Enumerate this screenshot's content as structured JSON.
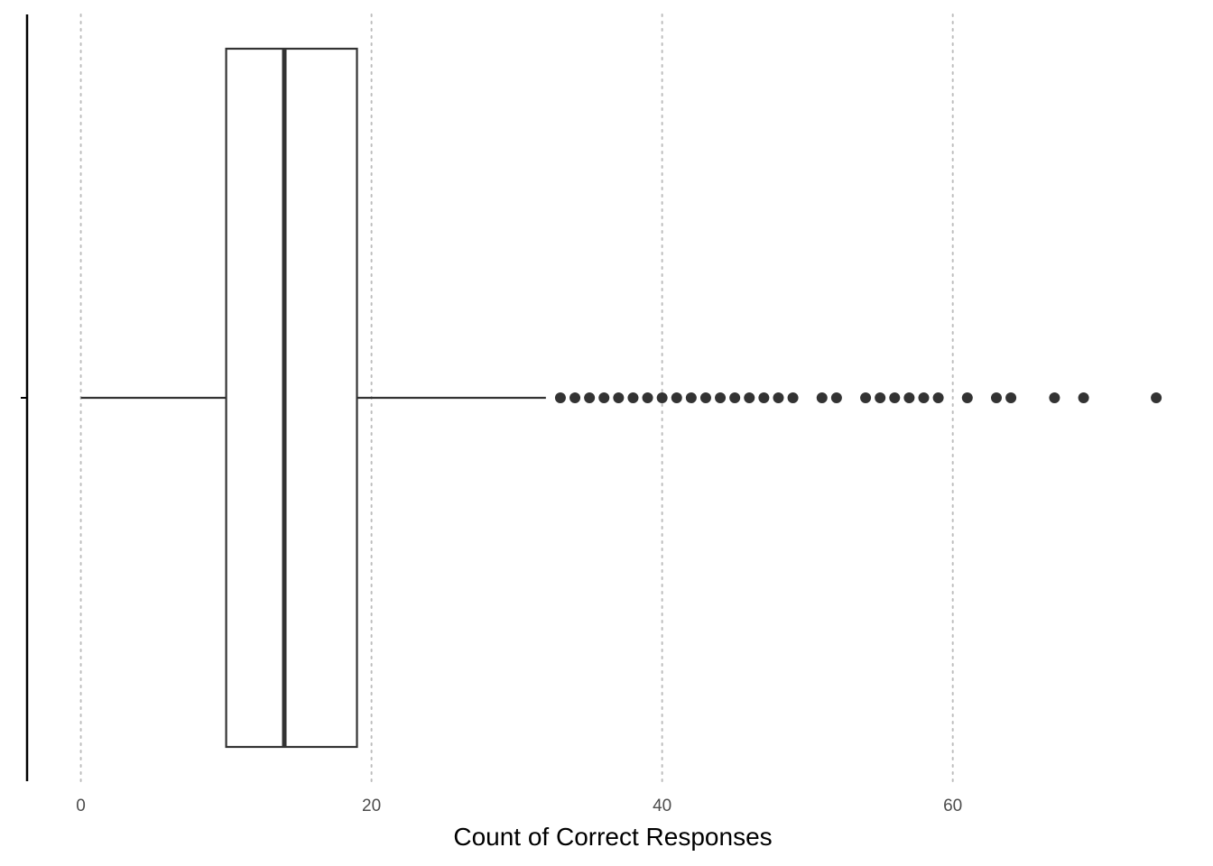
{
  "chart_data": {
    "type": "boxplot",
    "orientation": "horizontal",
    "xlabel": "Count of Correct Responses",
    "ylabel": "",
    "xlim": [
      -3.7,
      74.8
    ],
    "x_ticks": [
      0,
      20,
      40,
      60
    ],
    "x_tick_labels": [
      "0",
      "20",
      "40",
      "60"
    ],
    "grid": "vertical dotted major gridlines",
    "box": {
      "min": 0,
      "q1": 10,
      "median": 14,
      "q3": 19,
      "whisker_max": 32
    },
    "outliers": [
      33,
      34,
      35,
      36,
      37,
      38,
      39,
      40,
      41,
      42,
      43,
      44,
      45,
      46,
      47,
      48,
      49,
      51,
      52,
      54,
      55,
      56,
      57,
      58,
      59,
      61,
      63,
      64,
      67,
      69,
      74
    ],
    "colors": {
      "box_line": "#333333",
      "grid": "#bdbdbd",
      "axis_line": "#000000",
      "tick_text": "#4d4d4d"
    }
  }
}
